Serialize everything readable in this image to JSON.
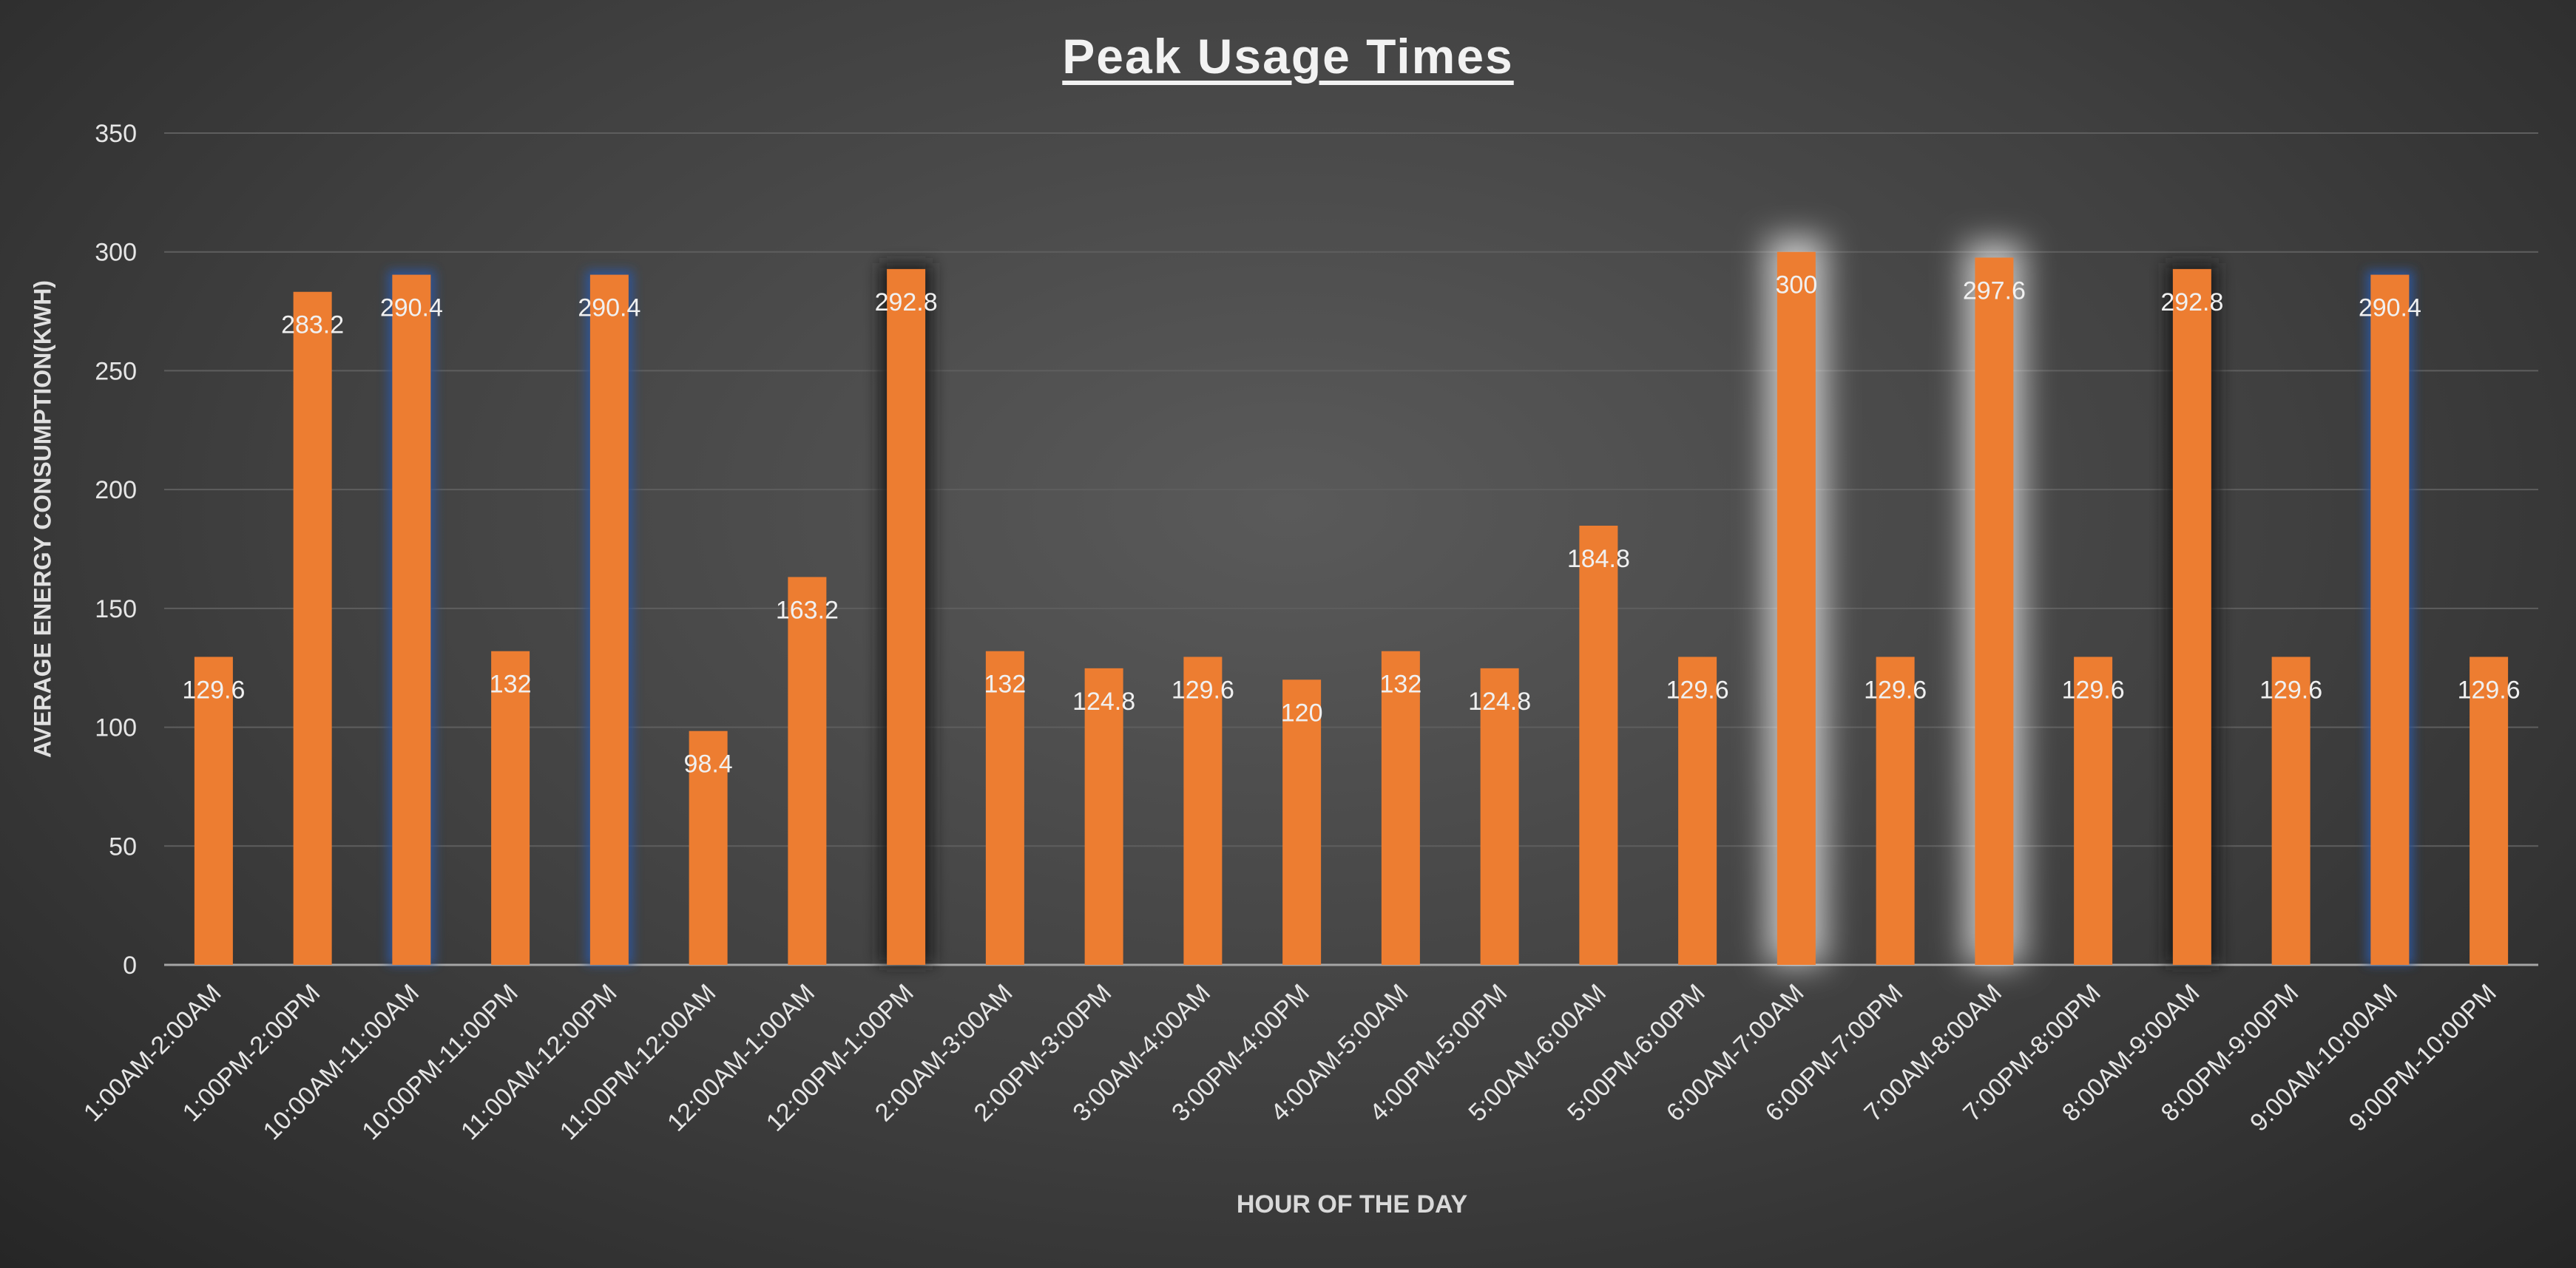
{
  "chart_data": {
    "type": "bar",
    "title": "Peak Usage Times",
    "xlabel": "HOUR OF THE DAY",
    "ylabel": "AVERAGE ENERGY CONSUMPTION(KWH)",
    "ylim": [
      0,
      350
    ],
    "yticks": [
      0,
      50,
      100,
      150,
      200,
      250,
      300,
      350
    ],
    "grid": true,
    "categories": [
      "1:00AM-2:00AM",
      "1:00PM-2:00PM",
      "10:00AM-11:00AM",
      "10:00PM-11:00PM",
      "11:00AM-12:00PM",
      "11:00PM-12:00AM",
      "12:00AM-1:00AM",
      "12:00PM-1:00PM",
      "2:00AM-3:00AM",
      "2:00PM-3:00PM",
      "3:00AM-4:00AM",
      "3:00PM-4:00PM",
      "4:00AM-5:00AM",
      "4:00PM-5:00PM",
      "5:00AM-6:00AM",
      "5:00PM-6:00PM",
      "6:00AM-7:00AM",
      "6:00PM-7:00PM",
      "7:00AM-8:00AM",
      "7:00PM-8:00PM",
      "8:00AM-9:00AM",
      "8:00PM-9:00PM",
      "9:00AM-10:00AM",
      "9:00PM-10:00PM"
    ],
    "values": [
      129.6,
      283.2,
      290.4,
      132,
      290.4,
      98.4,
      163.2,
      292.8,
      132,
      124.8,
      129.6,
      120,
      132,
      124.8,
      184.8,
      129.6,
      300,
      129.6,
      297.6,
      129.6,
      292.8,
      129.6,
      290.4,
      129.6
    ],
    "value_labels": [
      "129.6",
      "283.2",
      "290.4",
      "132",
      "290.4",
      "98.4",
      "163.2",
      "292.8",
      "132",
      "124.8",
      "129.6",
      "120",
      "132",
      "124.8",
      "184.8",
      "129.6",
      "300",
      "129.6",
      "297.6",
      "129.6",
      "292.8",
      "129.6",
      "290.4",
      "129.6"
    ],
    "glow": [
      "none",
      "none",
      "blue",
      "none",
      "blue",
      "none",
      "none",
      "dark",
      "none",
      "none",
      "none",
      "none",
      "none",
      "none",
      "none",
      "none",
      "white",
      "none",
      "white",
      "none",
      "dark",
      "none",
      "blue",
      "none"
    ],
    "colors": {
      "bar": "#ED7D31",
      "glow_blue": "#2F5597",
      "glow_dark": "#1a1a1a",
      "glow_white": "#ffffff",
      "grid": "#5e5e5e",
      "axis": "#a6a6a6"
    }
  }
}
